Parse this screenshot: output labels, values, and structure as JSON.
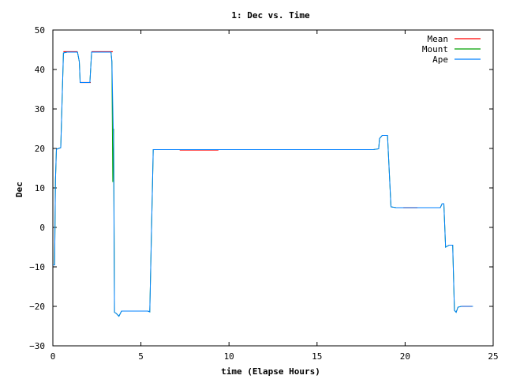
{
  "chart_data": {
    "type": "line",
    "title": "1: Dec vs. Time",
    "xlabel": "time (Elapse Hours)",
    "ylabel": "Dec",
    "xlim": [
      0,
      25
    ],
    "ylim": [
      -30,
      50
    ],
    "xticks": [
      0,
      5,
      10,
      15,
      20,
      25
    ],
    "yticks": [
      -30,
      -20,
      -10,
      0,
      10,
      20,
      30,
      40,
      50
    ],
    "grid": false,
    "legend_position": "top-right",
    "series": [
      {
        "name": "Mean",
        "color": "#ff0000",
        "segments": [
          [
            [
              0.6,
              44.5
            ],
            [
              1.4,
              44.5
            ]
          ],
          [
            [
              1.55,
              36.7
            ],
            [
              2.15,
              36.7
            ]
          ],
          [
            [
              2.2,
              44.5
            ],
            [
              3.4,
              44.5
            ]
          ],
          [
            [
              7.2,
              19.6
            ],
            [
              9.4,
              19.6
            ]
          ],
          [
            [
              19.9,
              5.0
            ],
            [
              20.7,
              5.0
            ]
          ],
          [
            [
              23.2,
              -20.0
            ],
            [
              23.8,
              -20.0
            ]
          ]
        ]
      },
      {
        "name": "Mount",
        "color": "#00a000",
        "points": [
          [
            0,
            -9.5
          ],
          [
            0.1,
            -9.5
          ],
          [
            0.15,
            12
          ],
          [
            0.2,
            19.8
          ],
          [
            0.45,
            20.2
          ],
          [
            0.6,
            44.2
          ],
          [
            0.8,
            44.4
          ],
          [
            1.4,
            44.4
          ],
          [
            1.5,
            42
          ],
          [
            1.55,
            36.7
          ],
          [
            2.1,
            36.7
          ],
          [
            2.2,
            44.4
          ],
          [
            3.3,
            44.4
          ],
          [
            3.35,
            42
          ],
          [
            3.4,
            11.5
          ],
          [
            3.45,
            25
          ],
          [
            3.5,
            -21.5
          ],
          [
            3.6,
            -21.8
          ],
          [
            3.75,
            -22.5
          ],
          [
            3.9,
            -21.2
          ],
          [
            4.5,
            -21.2
          ],
          [
            5.4,
            -21.2
          ],
          [
            5.5,
            -21.4
          ],
          [
            5.7,
            19.7
          ],
          [
            10,
            19.7
          ],
          [
            15,
            19.7
          ],
          [
            18.2,
            19.7
          ],
          [
            18.5,
            19.9
          ],
          [
            18.55,
            22.5
          ],
          [
            18.7,
            23.3
          ],
          [
            19.0,
            23.3
          ],
          [
            19.2,
            5.2
          ],
          [
            19.5,
            5.0
          ],
          [
            20.5,
            5.0
          ],
          [
            21.0,
            5.0
          ],
          [
            22.0,
            5.0
          ],
          [
            22.1,
            6.0
          ],
          [
            22.2,
            6.0
          ],
          [
            22.3,
            -5.0
          ],
          [
            22.5,
            -4.5
          ],
          [
            22.7,
            -4.5
          ],
          [
            22.8,
            -21.0
          ],
          [
            22.9,
            -21.5
          ],
          [
            23.0,
            -20.2
          ],
          [
            23.2,
            -20.0
          ],
          [
            23.85,
            -20.0
          ]
        ]
      },
      {
        "name": "Ape",
        "color": "#0080ff",
        "points": [
          [
            0,
            -9.5
          ],
          [
            0.1,
            -9.5
          ],
          [
            0.15,
            12
          ],
          [
            0.2,
            19.8
          ],
          [
            0.45,
            20.2
          ],
          [
            0.6,
            44.2
          ],
          [
            0.8,
            44.4
          ],
          [
            1.4,
            44.4
          ],
          [
            1.5,
            42
          ],
          [
            1.55,
            36.7
          ],
          [
            2.1,
            36.7
          ],
          [
            2.2,
            44.4
          ],
          [
            3.3,
            44.4
          ],
          [
            3.35,
            42
          ],
          [
            3.45,
            20
          ],
          [
            3.5,
            -21.5
          ],
          [
            3.6,
            -21.8
          ],
          [
            3.75,
            -22.5
          ],
          [
            3.9,
            -21.2
          ],
          [
            4.5,
            -21.2
          ],
          [
            5.4,
            -21.2
          ],
          [
            5.5,
            -21.4
          ],
          [
            5.7,
            19.7
          ],
          [
            10,
            19.7
          ],
          [
            15,
            19.7
          ],
          [
            18.2,
            19.7
          ],
          [
            18.5,
            19.9
          ],
          [
            18.55,
            22.5
          ],
          [
            18.7,
            23.3
          ],
          [
            19.0,
            23.3
          ],
          [
            19.2,
            5.2
          ],
          [
            19.5,
            5.0
          ],
          [
            20.5,
            5.0
          ],
          [
            21.0,
            5.0
          ],
          [
            22.0,
            5.0
          ],
          [
            22.1,
            6.0
          ],
          [
            22.2,
            6.0
          ],
          [
            22.3,
            -5.0
          ],
          [
            22.5,
            -4.5
          ],
          [
            22.7,
            -4.5
          ],
          [
            22.8,
            -21.0
          ],
          [
            22.9,
            -21.5
          ],
          [
            23.0,
            -20.2
          ],
          [
            23.2,
            -20.0
          ],
          [
            23.85,
            -20.0
          ]
        ]
      }
    ]
  }
}
